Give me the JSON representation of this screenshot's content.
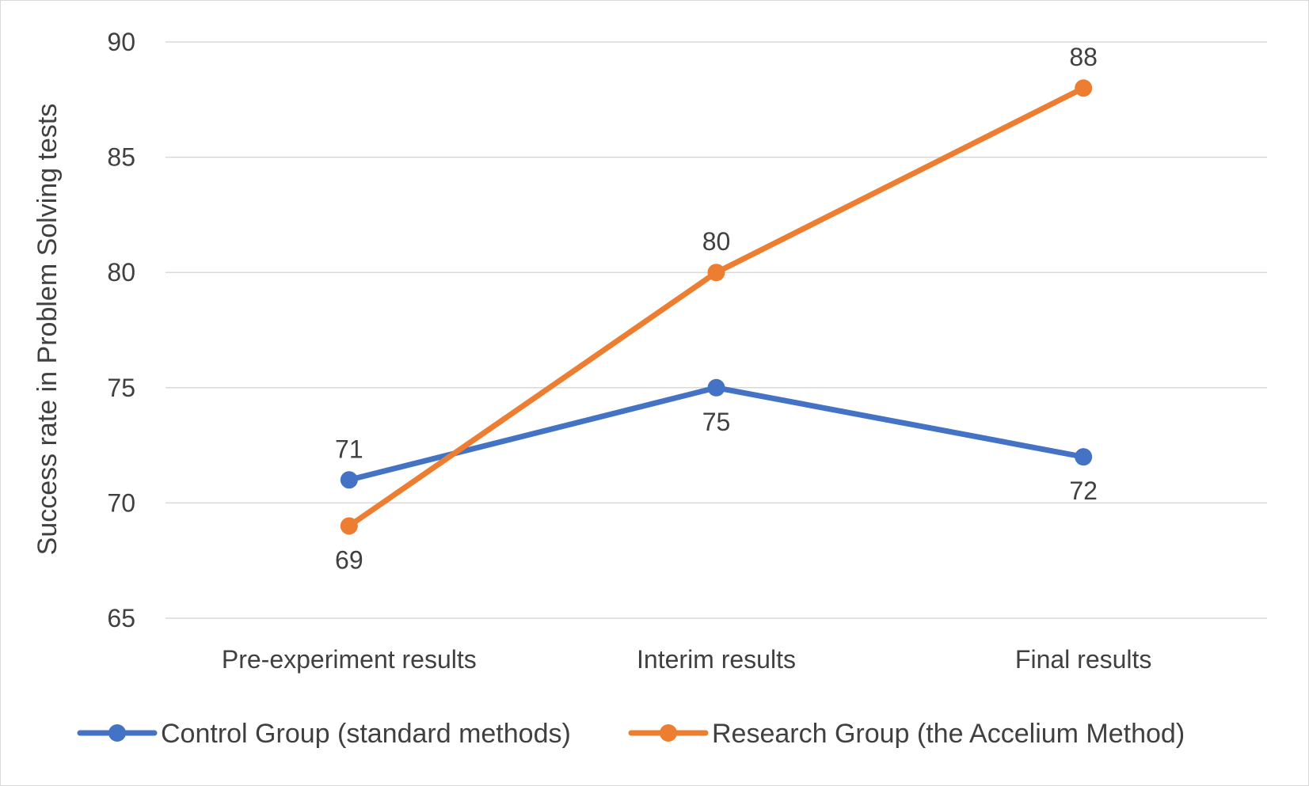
{
  "chart_data": {
    "type": "line",
    "title": "",
    "xlabel": "",
    "ylabel": "Success rate in Problem Solving tests",
    "categories": [
      "Pre-experiment results",
      "Interim results",
      "Final results"
    ],
    "series": [
      {
        "name": "Control Group (standard methods)",
        "values": [
          71,
          75,
          72
        ],
        "color": "#4472C4"
      },
      {
        "name": "Research Group (the Accelium Method)",
        "values": [
          69,
          80,
          88
        ],
        "color": "#ED7D31"
      }
    ],
    "ylim": [
      65,
      90
    ],
    "yticks": [
      65,
      70,
      75,
      80,
      85,
      90
    ],
    "grid": true,
    "legend": "bottom"
  }
}
